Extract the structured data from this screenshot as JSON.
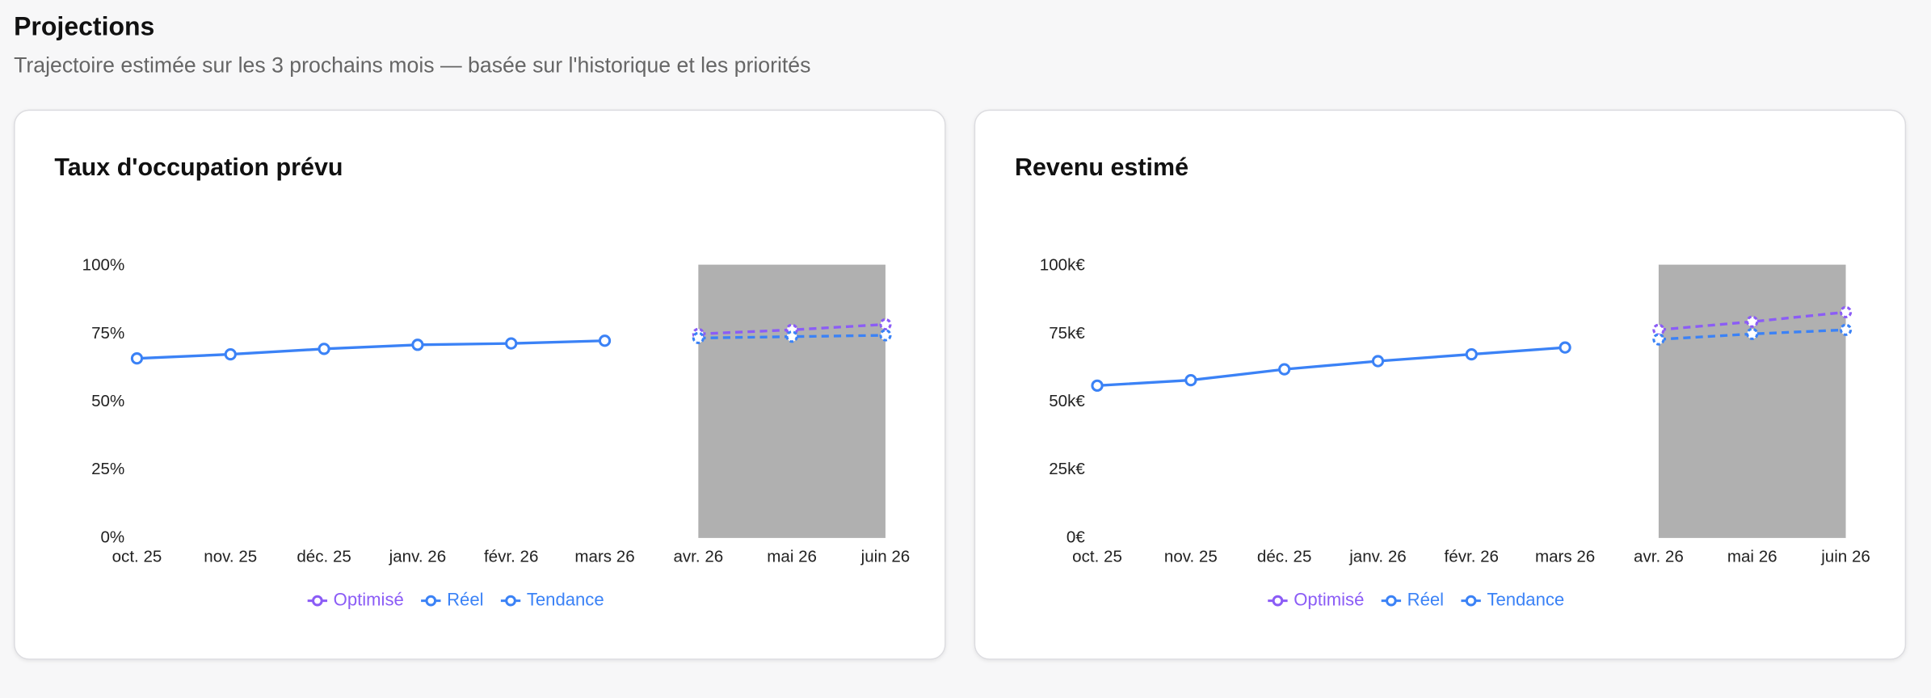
{
  "header": {
    "title": "Projections",
    "subtitle": "Trajectoire estimée sur les 3 prochains mois — basée sur l'historique et les priorités"
  },
  "chart_data": [
    {
      "type": "line",
      "title": "Taux d'occupation prévu",
      "categories": [
        "oct. 25",
        "nov. 25",
        "déc. 25",
        "janv. 26",
        "févr. 26",
        "mars 26",
        "avr. 26",
        "mai 26",
        "juin 26"
      ],
      "series": [
        {
          "name": "Optimisé",
          "color": "#8b5cf6",
          "dashed": true,
          "values": [
            null,
            null,
            null,
            null,
            null,
            null,
            75,
            76.5,
            78.5
          ]
        },
        {
          "name": "Réel",
          "color": "#3b82f6",
          "dashed": false,
          "values": [
            66,
            67.5,
            69.5,
            71,
            71.5,
            72.5,
            null,
            null,
            null
          ]
        },
        {
          "name": "Tendance",
          "color": "#3b82f6",
          "dashed": true,
          "values": [
            null,
            null,
            null,
            null,
            null,
            null,
            73.5,
            74,
            74.5
          ]
        }
      ],
      "ylim": [
        0,
        100
      ],
      "yticks": [
        {
          "value": 0,
          "label": "0%"
        },
        {
          "value": 25,
          "label": "25%"
        },
        {
          "value": 50,
          "label": "50%"
        },
        {
          "value": 75,
          "label": "75%"
        },
        {
          "value": 100,
          "label": "100%"
        }
      ],
      "grid": false,
      "legend": "bottom",
      "shade_color": "#b0b0b0"
    },
    {
      "type": "line",
      "title": "Revenu estimé",
      "categories": [
        "oct. 25",
        "nov. 25",
        "déc. 25",
        "janv. 26",
        "févr. 26",
        "mars 26",
        "avr. 26",
        "mai 26",
        "juin 26"
      ],
      "series": [
        {
          "name": "Optimisé",
          "color": "#8b5cf6",
          "dashed": true,
          "values": [
            null,
            null,
            null,
            null,
            null,
            null,
            76500,
            79500,
            83000
          ]
        },
        {
          "name": "Réel",
          "color": "#3b82f6",
          "dashed": false,
          "values": [
            56000,
            58000,
            62000,
            65000,
            67500,
            70000,
            null,
            null,
            null
          ]
        },
        {
          "name": "Tendance",
          "color": "#3b82f6",
          "dashed": true,
          "values": [
            null,
            null,
            null,
            null,
            null,
            null,
            73000,
            75000,
            76500
          ]
        }
      ],
      "ylim": [
        0,
        100000
      ],
      "yticks": [
        {
          "value": 0,
          "label": "0€"
        },
        {
          "value": 25000,
          "label": "25k€"
        },
        {
          "value": 50000,
          "label": "50k€"
        },
        {
          "value": 75000,
          "label": "75k€"
        },
        {
          "value": 100000,
          "label": "100k€"
        }
      ],
      "grid": false,
      "legend": "bottom",
      "shade_color": "#b0b0b0"
    }
  ]
}
